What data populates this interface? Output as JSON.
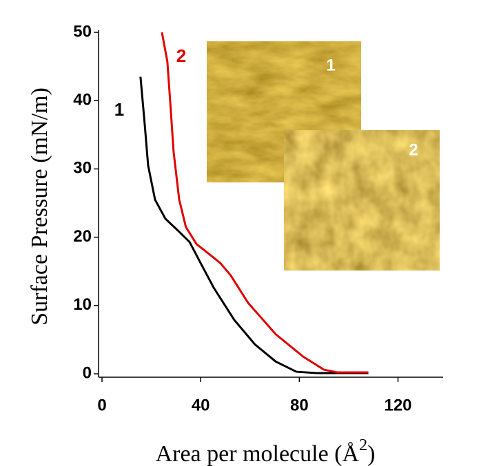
{
  "chart_data": {
    "type": "line",
    "ylabel": "Surface Pressure (mN/m)",
    "xlabel": [
      "Area per molecule (Å",
      "2",
      ")"
    ],
    "xlim": [
      -1.4,
      138.3
    ],
    "ylim": [
      -0.5,
      50.3
    ],
    "xticks": [
      0,
      40,
      80,
      120
    ],
    "yticks": [
      0,
      10,
      20,
      30,
      40,
      50
    ],
    "series": [
      {
        "name": "1",
        "color": "#000000",
        "x": [
          15.6,
          17.3,
          18.7,
          21.5,
          25.7,
          30.7,
          35.5,
          39.7,
          45.3,
          53.6,
          62,
          70.4,
          78.8,
          87,
          108
        ],
        "values": [
          43.5,
          36.6,
          30.5,
          25.5,
          22.7,
          21,
          19.3,
          16.4,
          12.6,
          7.9,
          4.3,
          1.8,
          0.3,
          0.1,
          0.1
        ]
      },
      {
        "name": "2",
        "color": "#e00000",
        "x": [
          24.3,
          26.5,
          27.7,
          29,
          31.3,
          34,
          38.3,
          43.9,
          48,
          52.2,
          59.2,
          70.4,
          81.6,
          90,
          95.5,
          108
        ],
        "values": [
          50,
          45.7,
          39.6,
          32.6,
          25.5,
          21.5,
          19,
          17.4,
          16.2,
          14.4,
          10.4,
          5.8,
          2.5,
          0.6,
          0.2,
          0.2
        ]
      }
    ]
  }
}
